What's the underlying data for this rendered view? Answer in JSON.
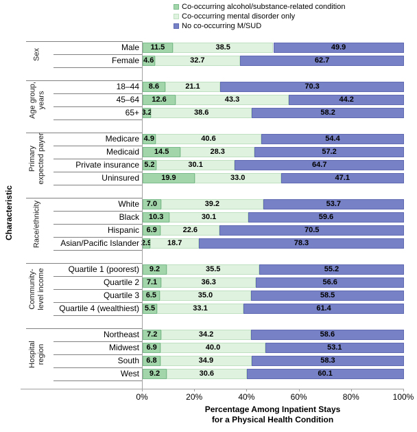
{
  "legend": {
    "items": [
      {
        "label": "Co-occurring alcohol/substance-related condition"
      },
      {
        "label": "Co-occurring mental disorder only"
      },
      {
        "label": "No co-occurring M/SUD"
      }
    ]
  },
  "axis": {
    "ylabel": "Characteristic",
    "xlabel_line1": "Percentage Among Inpatient Stays",
    "xlabel_line2": "for a Physical Health Condition"
  },
  "chart_data": {
    "type": "bar",
    "orientation": "horizontal-stacked",
    "xlabel": "Percentage Among Inpatient Stays\nfor a Physical Health Condition",
    "ylabel": "Characteristic",
    "xlim": [
      0,
      100
    ],
    "x_ticks": [
      "0%",
      "20%",
      "40%",
      "60%",
      "80%",
      "100%"
    ],
    "legend_position": "top",
    "grid": false,
    "series": [
      "Co-occurring alcohol/substance-related condition",
      "Co-occurring mental disorder only",
      "No co-occurring M/SUD"
    ],
    "colors": [
      "#a2d5aa",
      "#dff1df",
      "#7781c5"
    ],
    "border_colors": [
      "#7cbc8c",
      "#c0e0c2",
      "#5e69b2"
    ],
    "groups": [
      {
        "label": "Sex",
        "rows": [
          {
            "label": "Male",
            "values": [
              "11.5",
              "38.5",
              "49.9"
            ]
          },
          {
            "label": "Female",
            "values": [
              "4.6",
              "32.7",
              "62.7"
            ]
          }
        ]
      },
      {
        "label": "Age group,\nyears",
        "rows": [
          {
            "label": "18–44",
            "values": [
              "8.6",
              "21.1",
              "70.3"
            ]
          },
          {
            "label": "45–64",
            "values": [
              "12.6",
              "43.3",
              "44.2"
            ]
          },
          {
            "label": "65+",
            "values": [
              "3.2",
              "38.6",
              "58.2"
            ]
          }
        ]
      },
      {
        "label": "Primary\nexpected payer",
        "rows": [
          {
            "label": "Medicare",
            "values": [
              "4.9",
              "40.6",
              "54.4"
            ]
          },
          {
            "label": "Medicaid",
            "values": [
              "14.5",
              "28.3",
              "57.2"
            ]
          },
          {
            "label": "Private insurance",
            "values": [
              "5.2",
              "30.1",
              "64.7"
            ]
          },
          {
            "label": "Uninsured",
            "values": [
              "19.9",
              "33.0",
              "47.1"
            ]
          }
        ]
      },
      {
        "label": "Race/ethnicity",
        "rows": [
          {
            "label": "White",
            "values": [
              "7.0",
              "39.2",
              "53.7"
            ]
          },
          {
            "label": "Black",
            "values": [
              "10.3",
              "30.1",
              "59.6"
            ]
          },
          {
            "label": "Hispanic",
            "values": [
              "6.9",
              "22.6",
              "70.5"
            ]
          },
          {
            "label": "Asian/Pacific Islander",
            "values": [
              "2.9",
              "18.7",
              "78.3"
            ]
          }
        ]
      },
      {
        "label": "Community-\nlevel income",
        "rows": [
          {
            "label": "Quartile 1 (poorest)",
            "values": [
              "9.2",
              "35.5",
              "55.2"
            ]
          },
          {
            "label": "Quartile 2",
            "values": [
              "7.1",
              "36.3",
              "56.6"
            ]
          },
          {
            "label": "Quartile 3",
            "values": [
              "6.5",
              "35.0",
              "58.5"
            ]
          },
          {
            "label": "Quartile 4 (wealthiest)",
            "values": [
              "5.5",
              "33.1",
              "61.4"
            ]
          }
        ]
      },
      {
        "label": "Hospital\nregion",
        "rows": [
          {
            "label": "Northeast",
            "values": [
              "7.2",
              "34.2",
              "58.6"
            ]
          },
          {
            "label": "Midwest",
            "values": [
              "6.9",
              "40.0",
              "53.1"
            ]
          },
          {
            "label": "South",
            "values": [
              "6.8",
              "34.9",
              "58.3"
            ]
          },
          {
            "label": "West",
            "values": [
              "9.2",
              "30.6",
              "60.1"
            ]
          }
        ]
      }
    ]
  }
}
